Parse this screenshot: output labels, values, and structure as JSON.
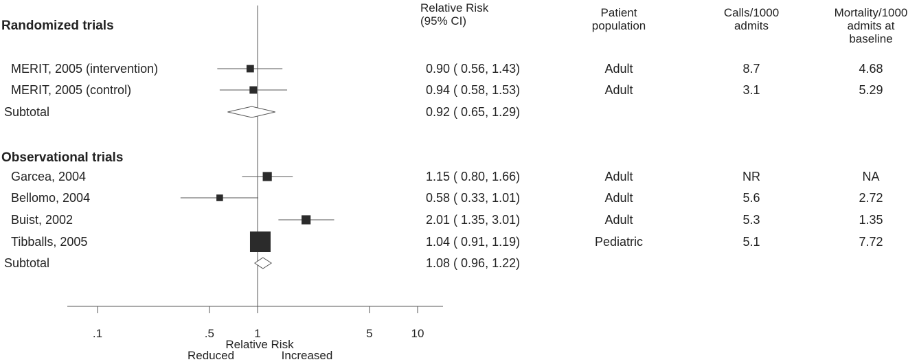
{
  "headers": {
    "rr": "Relative Risk\n(95% CI)",
    "population": "Patient\npopulation",
    "calls": "Calls/1000\nadmits",
    "mortality": "Mortality/1000\nadmits at\nbaseline"
  },
  "sections": [
    {
      "title": "Randomized trials",
      "rows": [
        {
          "label": "MERIT, 2005 (intervention)",
          "rr": 0.9,
          "lo": 0.56,
          "hi": 1.43,
          "ci_text": "0.90 ( 0.56, 1.43)",
          "population": "Adult",
          "calls": "8.7",
          "mortality": "4.68",
          "weight": 0.2
        },
        {
          "label": "MERIT, 2005 (control)",
          "rr": 0.94,
          "lo": 0.58,
          "hi": 1.53,
          "ci_text": "0.94 ( 0.58, 1.53)",
          "population": "Adult",
          "calls": "3.1",
          "mortality": "5.29",
          "weight": 0.2
        }
      ],
      "subtotal": {
        "label": "Subtotal",
        "rr": 0.92,
        "lo": 0.65,
        "hi": 1.29,
        "ci_text": "0.92 ( 0.65, 1.29)"
      }
    },
    {
      "title": "Observational trials",
      "rows": [
        {
          "label": "Garcea, 2004",
          "rr": 1.15,
          "lo": 0.8,
          "hi": 1.66,
          "ci_text": "1.15 ( 0.80, 1.66)",
          "population": "Adult",
          "calls": "NR",
          "mortality": "NA",
          "weight": 0.3
        },
        {
          "label": "Bellomo, 2004",
          "rr": 0.58,
          "lo": 0.33,
          "hi": 1.01,
          "ci_text": "0.58 ( 0.33, 1.01)",
          "population": "Adult",
          "calls": "5.6",
          "mortality": "2.72",
          "weight": 0.15
        },
        {
          "label": "Buist, 2002",
          "rr": 2.01,
          "lo": 1.35,
          "hi": 3.01,
          "ci_text": "2.01 ( 1.35, 3.01)",
          "population": "Adult",
          "calls": "5.3",
          "mortality": "1.35",
          "weight": 0.3
        },
        {
          "label": "Tibballs, 2005",
          "rr": 1.04,
          "lo": 0.91,
          "hi": 1.19,
          "ci_text": "1.04 ( 0.91, 1.19)",
          "population": "Pediatric",
          "calls": "5.1",
          "mortality": "7.72",
          "weight": 1.0
        }
      ],
      "subtotal": {
        "label": "Subtotal",
        "rr": 1.08,
        "lo": 0.96,
        "hi": 1.22,
        "ci_text": "1.08 ( 0.96, 1.22)"
      }
    }
  ],
  "chart_data": {
    "type": "forest",
    "xlabel": "Relative Risk",
    "direction_left": "Reduced",
    "direction_right": "Increased",
    "x_scale": "log",
    "xlim": [
      0.07,
      14
    ],
    "xticks": [
      0.1,
      0.5,
      1,
      5,
      10
    ],
    "xtick_labels": [
      ".1",
      ".5",
      "1",
      "5",
      "10"
    ],
    "reference_line": 1,
    "series": [
      {
        "study": "MERIT, 2005 (intervention)",
        "rr": 0.9,
        "ci": [
          0.56,
          1.43
        ]
      },
      {
        "study": "MERIT, 2005 (control)",
        "rr": 0.94,
        "ci": [
          0.58,
          1.53
        ]
      },
      {
        "study": "Subtotal",
        "rr": 0.92,
        "ci": [
          0.65,
          1.29
        ],
        "pooled": true
      },
      {
        "study": "Garcea, 2004",
        "rr": 1.15,
        "ci": [
          0.8,
          1.66
        ]
      },
      {
        "study": "Bellomo, 2004",
        "rr": 0.58,
        "ci": [
          0.33,
          1.01
        ]
      },
      {
        "study": "Buist, 2002",
        "rr": 2.01,
        "ci": [
          1.35,
          3.01
        ]
      },
      {
        "study": "Tibballs, 2005",
        "rr": 1.04,
        "ci": [
          0.91,
          1.19
        ]
      },
      {
        "study": "Subtotal",
        "rr": 1.08,
        "ci": [
          0.96,
          1.22
        ],
        "pooled": true
      }
    ],
    "colors": {
      "marker": "#2b2b2b",
      "line": "#555555",
      "axis": "#555555",
      "diamond_fill": "#ffffff"
    }
  }
}
